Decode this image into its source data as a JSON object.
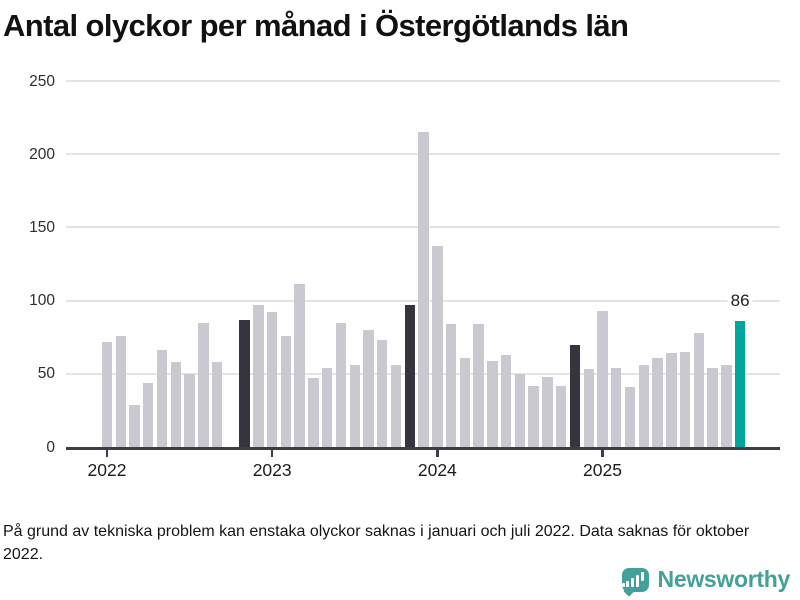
{
  "title": "Antal olyckor per månad i Östergötlands län",
  "footnote": "På grund av tekniska problem kan enstaka olyckor saknas i januari och juli 2022. Data saknas för oktober 2022.",
  "branding": {
    "name": "Newsworthy",
    "icon": "speech-bubble-bar-chart-icon"
  },
  "colors": {
    "bar_default": "#cac8d0",
    "bar_highlight_past": "#35343f",
    "bar_highlight_current": "#00a59b",
    "axis": "#3e3d46",
    "gridline": "#e4e3e6",
    "brand_teal": "#45a09a"
  },
  "chart_data": {
    "type": "bar",
    "title": "Antal olyckor per månad i Östergötlands län",
    "xlabel": "",
    "ylabel": "",
    "ylim": [
      0,
      250
    ],
    "yticks": [
      0,
      50,
      100,
      150,
      200,
      250
    ],
    "grid": true,
    "legend_position": "none",
    "categories": [
      "2022-01",
      "2022-02",
      "2022-03",
      "2022-04",
      "2022-05",
      "2022-06",
      "2022-07",
      "2022-08",
      "2022-09",
      "2022-10",
      "2022-11",
      "2022-12",
      "2023-01",
      "2023-02",
      "2023-03",
      "2023-04",
      "2023-05",
      "2023-06",
      "2023-07",
      "2023-08",
      "2023-09",
      "2023-10",
      "2023-11",
      "2023-12",
      "2024-01",
      "2024-02",
      "2024-03",
      "2024-04",
      "2024-05",
      "2024-06",
      "2024-07",
      "2024-08",
      "2024-09",
      "2024-10",
      "2024-11",
      "2024-12",
      "2025-01",
      "2025-02",
      "2025-03",
      "2025-04",
      "2025-05",
      "2025-06",
      "2025-07",
      "2025-08",
      "2025-09",
      "2025-10",
      "2025-11"
    ],
    "values": [
      72,
      76,
      29,
      44,
      66,
      58,
      50,
      85,
      58,
      null,
      87,
      97,
      92,
      76,
      111,
      47,
      54,
      85,
      56,
      80,
      73,
      56,
      97,
      215,
      137,
      84,
      61,
      84,
      59,
      63,
      50,
      42,
      48,
      42,
      70,
      53,
      93,
      54,
      41,
      56,
      61,
      64,
      65,
      78,
      54,
      56,
      86
    ],
    "year_tick_labels": [
      "2022",
      "2023",
      "2024",
      "2025"
    ],
    "highlight_dark_categories": [
      "2022-11",
      "2023-11",
      "2024-11"
    ],
    "highlight_current_category": "2025-11",
    "annotations": [
      {
        "category": "2025-11",
        "label": "86"
      }
    ],
    "missing_categories": [
      "2022-10"
    ]
  }
}
